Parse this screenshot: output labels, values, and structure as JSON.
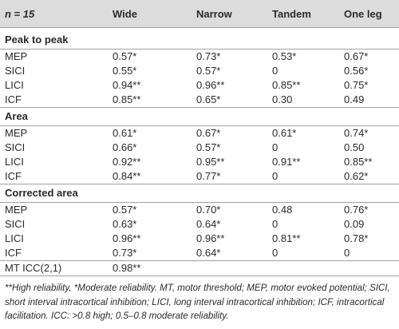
{
  "header": {
    "n_label": "n = 15",
    "columns": [
      "Wide",
      "Narrow",
      "Tandem",
      "One leg"
    ]
  },
  "sections": [
    {
      "title": "Peak to peak",
      "rows": [
        {
          "label": "MEP",
          "values": [
            "0.57*",
            "0.73*",
            "0.53*",
            "0.67*"
          ]
        },
        {
          "label": "SICI",
          "values": [
            "0.55*",
            "0.57*",
            "0",
            "0.56*"
          ]
        },
        {
          "label": "LICI",
          "values": [
            "0.94**",
            "0.96**",
            "0.85**",
            "0.75*"
          ]
        },
        {
          "label": "ICF",
          "values": [
            "0.85**",
            "0.65*",
            "0.30",
            "0.49"
          ]
        }
      ]
    },
    {
      "title": "Area",
      "rows": [
        {
          "label": "MEP",
          "values": [
            "0.61*",
            "0.67*",
            "0.61*",
            "0.74*"
          ]
        },
        {
          "label": "SICI",
          "values": [
            "0.66*",
            "0.57*",
            "0",
            "0.50"
          ]
        },
        {
          "label": "LICI",
          "values": [
            "0.92**",
            "0.95**",
            "0.91**",
            "0.85**"
          ]
        },
        {
          "label": "ICF",
          "values": [
            "0.84**",
            "0.77*",
            "0",
            "0.62*"
          ]
        }
      ]
    },
    {
      "title": "Corrected area",
      "rows": [
        {
          "label": "MEP",
          "values": [
            "0.57*",
            "0.70*",
            "0.48",
            "0.76*"
          ]
        },
        {
          "label": "SICI",
          "values": [
            "0.63*",
            "0.64*",
            "0",
            "0.09"
          ]
        },
        {
          "label": "LICI",
          "values": [
            "0.96**",
            "0.96**",
            "0.81**",
            "0.78*"
          ]
        },
        {
          "label": "ICF",
          "values": [
            "0.73*",
            "0.64*",
            "0",
            "0"
          ]
        }
      ]
    }
  ],
  "mt_row": {
    "label": "MT ICC(2,1)",
    "value": "0.98**"
  },
  "footnote": "**High reliability, *Moderate reliability. MT, motor threshold; MEP, motor evoked potential; SICI, short interval intracortical inhibition; LICI, long interval intracortical inhibition; ICF, intracortical facilitation. ICC: >0.8 high; 0.5–0.8 moderate reliability."
}
